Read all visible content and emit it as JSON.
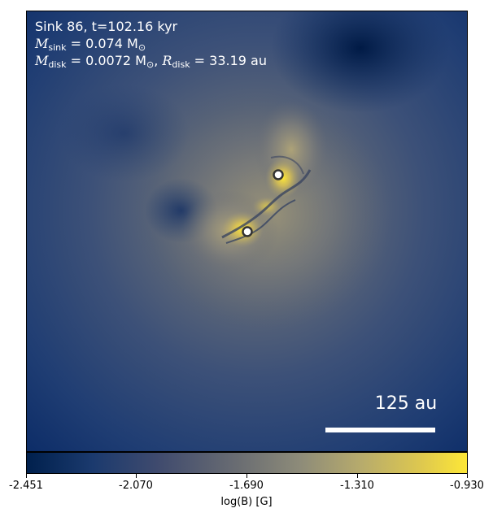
{
  "annotation": {
    "line1": "Sink 86, t=102.16 kyr",
    "m_sink_symbol": "M",
    "m_sink_sub": "sink",
    "m_sink_value": " = 0.074 M",
    "m_sun_sub": "⊙",
    "m_disk_symbol": "M",
    "m_disk_sub": "disk",
    "m_disk_value": " = 0.0072 M",
    "m_disk_sun_sub": "⊙",
    "r_disk_symbol": "R",
    "r_disk_sub": "disk",
    "r_disk_value": " = 33.19 au"
  },
  "scale_bar": {
    "label": "125 au"
  },
  "colorbar": {
    "label": "log(B) [G]",
    "ticks": [
      "-2.451",
      "-2.070",
      "-1.690",
      "-1.310",
      "-0.930"
    ],
    "colors": {
      "low": "#00204d",
      "mid": "#7c7b78",
      "high": "#fde737"
    }
  },
  "sinks": [
    {
      "name": "sink-upper"
    },
    {
      "name": "sink-lower"
    }
  ]
}
